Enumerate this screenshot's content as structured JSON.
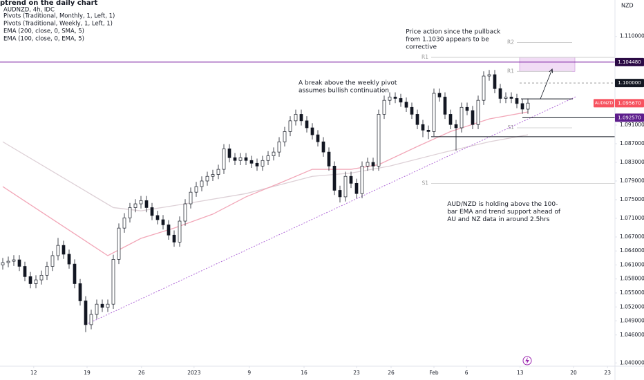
{
  "chart_data": {
    "type": "candlestick",
    "title": "ptrend on the daily chart",
    "subtitle": "AUDNZD, 4h, IDC",
    "indicators": [
      "Pivots (Traditional, Monthly, 1, Left, 1)",
      "Pivots (Traditional, Weekly, 1, Left, 1)"
    ],
    "y_axis_label": "NZD",
    "up_color": "#ffffff",
    "down_color": "#131722",
    "open": [
      1.061,
      1.0615,
      1.0618,
      1.0621,
      1.0607,
      1.0585,
      1.057,
      1.0578,
      1.0588,
      1.0607,
      1.063,
      1.0652,
      1.0633,
      1.0612,
      1.057,
      1.0533,
      1.0482,
      1.0504,
      1.0526,
      1.0519,
      1.0526,
      1.0622,
      1.0689,
      1.0711,
      1.0733,
      1.0741,
      1.0748,
      1.0733,
      1.0716,
      1.0707,
      1.0696,
      1.0674,
      1.0659,
      1.0704,
      1.0741,
      1.0766,
      1.0778,
      1.079,
      1.08,
      1.0804,
      1.0815,
      1.0859,
      1.084,
      1.0834,
      1.084,
      1.0834,
      1.0828,
      1.0822,
      1.0834,
      1.0844,
      1.0852,
      1.0874,
      1.0896,
      1.0919,
      1.0933,
      1.0919,
      1.0904,
      1.0889,
      1.0874,
      1.0852,
      1.0822,
      1.077,
      1.0756,
      1.08,
      1.0785,
      1.0763,
      1.0822,
      1.083,
      1.0822,
      1.0933,
      1.0963,
      1.097,
      1.0967,
      1.0959,
      1.0948,
      1.0933,
      1.0911,
      1.0899,
      1.0896,
      1.0978,
      1.097,
      1.0933,
      1.0911,
      1.0904,
      1.0948,
      1.0941,
      1.0911,
      1.0963,
      1.1015,
      1.1018,
      1.0988,
      1.0967,
      1.097,
      1.0967,
      1.0956,
      1.0944
    ],
    "high": [
      1.0625,
      1.0628,
      1.0631,
      1.0631,
      1.0617,
      1.0595,
      1.0588,
      1.0598,
      1.0617,
      1.064,
      1.0668,
      1.0662,
      1.0643,
      1.0622,
      1.058,
      1.0543,
      1.0514,
      1.0536,
      1.0536,
      1.0536,
      1.0632,
      1.0699,
      1.0721,
      1.0743,
      1.0751,
      1.0758,
      1.0758,
      1.0743,
      1.0726,
      1.0717,
      1.0706,
      1.0684,
      1.0714,
      1.0751,
      1.0776,
      1.0788,
      1.08,
      1.081,
      1.0814,
      1.0825,
      1.0869,
      1.0869,
      1.085,
      1.085,
      1.085,
      1.0844,
      1.0838,
      1.0844,
      1.0854,
      1.0862,
      1.0884,
      1.0906,
      1.0929,
      1.0943,
      1.0943,
      1.0929,
      1.0914,
      1.0899,
      1.0884,
      1.0862,
      1.0832,
      1.078,
      1.081,
      1.081,
      1.0795,
      1.0832,
      1.084,
      1.084,
      1.0943,
      1.0973,
      1.098,
      1.098,
      1.0977,
      1.0969,
      1.0958,
      1.0943,
      1.0921,
      1.0909,
      1.0988,
      1.0988,
      1.098,
      1.0943,
      1.0921,
      1.0958,
      1.0958,
      1.0951,
      1.0973,
      1.1025,
      1.1028,
      1.1028,
      1.0998,
      1.098,
      1.098,
      1.0977,
      1.0966,
      1.0967
    ],
    "low": [
      1.06,
      1.0605,
      1.0608,
      1.0597,
      1.0575,
      1.056,
      1.056,
      1.0568,
      1.0578,
      1.0597,
      1.062,
      1.0623,
      1.0602,
      1.056,
      1.0523,
      1.0466,
      1.0472,
      1.0494,
      1.0509,
      1.0509,
      1.0516,
      1.0612,
      1.0679,
      1.0701,
      1.0723,
      1.0731,
      1.0723,
      1.0706,
      1.0697,
      1.0686,
      1.0664,
      1.0649,
      1.0649,
      1.0694,
      1.0731,
      1.0756,
      1.0768,
      1.078,
      1.079,
      1.0794,
      1.0805,
      1.083,
      1.0824,
      1.0824,
      1.0824,
      1.0818,
      1.0812,
      1.0812,
      1.0824,
      1.0834,
      1.0842,
      1.0864,
      1.0886,
      1.0909,
      1.0909,
      1.0894,
      1.0879,
      1.0864,
      1.0842,
      1.0812,
      1.076,
      1.0744,
      1.0746,
      1.0775,
      1.0753,
      1.0753,
      1.0812,
      1.0812,
      1.0812,
      1.0923,
      1.0953,
      1.0957,
      1.0949,
      1.0938,
      1.0923,
      1.0901,
      1.0884,
      1.088,
      1.0886,
      1.096,
      1.0923,
      1.0901,
      1.0855,
      1.0894,
      1.0931,
      1.0901,
      1.0901,
      1.0953,
      1.1005,
      1.0978,
      1.0957,
      1.0957,
      1.0957,
      1.0946,
      1.0934,
      1.0934
    ],
    "close": [
      1.0615,
      1.0618,
      1.0621,
      1.0607,
      1.0585,
      1.057,
      1.0578,
      1.0588,
      1.0607,
      1.063,
      1.0652,
      1.0633,
      1.0612,
      1.057,
      1.0533,
      1.0482,
      1.0504,
      1.0526,
      1.0519,
      1.0526,
      1.0622,
      1.0689,
      1.0711,
      1.0733,
      1.0741,
      1.0748,
      1.0733,
      1.0716,
      1.0707,
      1.0696,
      1.0674,
      1.0659,
      1.0704,
      1.0741,
      1.0766,
      1.0778,
      1.079,
      1.08,
      1.0804,
      1.0815,
      1.0859,
      1.084,
      1.0834,
      1.084,
      1.0834,
      1.0828,
      1.0822,
      1.0834,
      1.0844,
      1.0852,
      1.0874,
      1.0896,
      1.0919,
      1.0933,
      1.0919,
      1.0904,
      1.0889,
      1.0874,
      1.0852,
      1.0822,
      1.077,
      1.0756,
      1.08,
      1.0785,
      1.0763,
      1.0822,
      1.083,
      1.0822,
      1.0933,
      1.0963,
      1.097,
      1.0967,
      1.0959,
      1.0948,
      1.0933,
      1.0911,
      1.0899,
      1.0896,
      1.0978,
      1.097,
      1.0933,
      1.0911,
      1.0904,
      1.0948,
      1.0941,
      1.0911,
      1.0963,
      1.1015,
      1.1018,
      1.0988,
      1.0967,
      1.097,
      1.0967,
      1.0956,
      1.0944,
      1.0957
    ],
    "moving_averages": [
      {
        "name": "EMA (200, close, 0, SMA, 5)",
        "color": "#ddd0d6",
        "x": [
          0,
          20,
          25,
          33,
          44,
          56,
          63,
          70,
          80,
          88,
          95
        ],
        "values": [
          1.0874,
          1.0733,
          1.0726,
          1.0741,
          1.0763,
          1.08,
          1.0807,
          1.0822,
          1.0852,
          1.0874,
          1.0889
        ]
      },
      {
        "name": "EMA (100, close, 0, EMA, 5)",
        "color": "#f2a7b8",
        "x": [
          0,
          19,
          25,
          31,
          38,
          44,
          50,
          56,
          63,
          68,
          75,
          81,
          88,
          95
        ],
        "values": [
          1.0778,
          1.063,
          1.0667,
          1.0689,
          1.0719,
          1.0756,
          1.0785,
          1.0815,
          1.0815,
          1.0825,
          1.0864,
          1.0896,
          1.0923,
          1.0938
        ]
      }
    ],
    "trendline": {
      "color": "#b06ad8",
      "x": [
        15,
        103.75
      ],
      "values": [
        1.0482,
        1.0971
      ]
    },
    "lines": [
      {
        "value": 1.10448,
        "x": [
          -0.5,
          110.75
        ],
        "color": "#7b1fa2",
        "dash": false
      },
      {
        "value": 1.1,
        "x": [
          93.5,
          110.75
        ],
        "color": "#999999",
        "dash": true
      },
      {
        "value": 1.0966,
        "x": [
          93.75,
          103.125
        ],
        "color": "#131722",
        "dash": false
      },
      {
        "value": 1.09257,
        "x": [
          94,
          110.75
        ],
        "color": "#131722",
        "dash": false
      },
      {
        "value": 1.0885,
        "x": [
          77.5,
          110.75
        ],
        "color": "#131722",
        "dash": false
      }
    ],
    "pivots": [
      {
        "label": "R2",
        "value": 1.1087,
        "x": [
          93,
          103
        ]
      },
      {
        "label": "R1",
        "value": 1.1055,
        "x": [
          77.5,
          110.75
        ]
      },
      {
        "label": "R1",
        "value": 1.1025,
        "x": [
          93,
          103
        ]
      },
      {
        "label": "S1",
        "value": 1.0904,
        "x": [
          93,
          103
        ]
      },
      {
        "label": "S1",
        "value": 1.0785,
        "x": [
          77.5,
          110.75
        ]
      }
    ],
    "zone": {
      "color": "#e8c5ee",
      "values": [
        1.1025,
        1.1055
      ],
      "x": [
        93.5,
        103.5
      ]
    },
    "arrow": {
      "x": [
        97.25,
        99.4
      ],
      "values": [
        1.0966,
        1.103
      ]
    },
    "badges": [
      {
        "value": 1.10448,
        "label": "1.104480",
        "color": "#2b0a45"
      },
      {
        "value": 1.1,
        "label": "1.100000",
        "color": "#131722"
      },
      {
        "name": "AUDNZD",
        "value": 1.09567,
        "label": "1.095670",
        "color": "#f7525f"
      },
      {
        "value": 1.09257,
        "label": "1.092570",
        "color": "#5d1d8c"
      }
    ],
    "annotations": [
      {
        "lines": [
          "Price action since the pullback",
          "from 1.1030 appears to be",
          "corrective"
        ],
        "x": 72.9,
        "value": 1.111
      },
      {
        "lines": [
          "A break above the weekly pivot",
          "assumes bullish continuation"
        ],
        "x": 53.5,
        "value": 1.1
      },
      {
        "lines": [
          "AUD/NZD is holding above the 100-",
          "bar EMA and trend support ahead of",
          "AU and NZ data in around 2.5hrs"
        ],
        "x": 80.4,
        "value": 1.074
      }
    ],
    "xlim": [
      -0.5,
      110.75
    ],
    "ylim": [
      1.0393,
      1.1178
    ],
    "xticks": [
      {
        "value": 5.6,
        "label": "12"
      },
      {
        "value": 15.25,
        "label": "19"
      },
      {
        "value": 25.1,
        "label": "26"
      },
      {
        "value": 34.6,
        "label": "2023"
      },
      {
        "value": 44.6,
        "label": "9"
      },
      {
        "value": 54.5,
        "label": "16"
      },
      {
        "value": 64,
        "label": "23"
      },
      {
        "value": 70.25,
        "label": "26"
      },
      {
        "value": 78,
        "label": "Feb"
      },
      {
        "value": 83.9,
        "label": "6"
      },
      {
        "value": 93.6,
        "label": "13"
      },
      {
        "value": 103.25,
        "label": "20"
      },
      {
        "value": 109.4,
        "label": "23"
      }
    ],
    "yticks": [
      {
        "value": 1.04,
        "label": "1.040000"
      },
      {
        "value": 1.046,
        "label": "1.046000"
      },
      {
        "value": 1.049,
        "label": "1.049000"
      },
      {
        "value": 1.052,
        "label": "1.052000"
      },
      {
        "value": 1.055,
        "label": "1.055000"
      },
      {
        "value": 1.058,
        "label": "1.058000"
      },
      {
        "value": 1.061,
        "label": "1.061000"
      },
      {
        "value": 1.064,
        "label": "1.064000"
      },
      {
        "value": 1.067,
        "label": "1.067000"
      },
      {
        "value": 1.071,
        "label": "1.071000"
      },
      {
        "value": 1.075,
        "label": "1.075000"
      },
      {
        "value": 1.079,
        "label": "1.079000"
      },
      {
        "value": 1.083,
        "label": "1.083000"
      },
      {
        "value": 1.087,
        "label": "1.087000"
      },
      {
        "value": 1.091,
        "label": "1.091000"
      },
      {
        "value": 1.11,
        "label": "1.110000"
      }
    ],
    "grid": false
  }
}
